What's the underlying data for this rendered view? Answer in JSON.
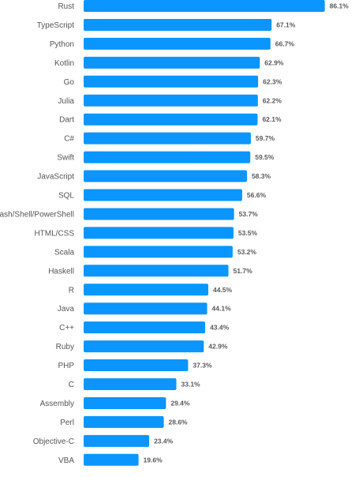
{
  "chart_data": {
    "type": "bar",
    "orientation": "horizontal",
    "unit": "%",
    "bar_color": "#0a95ff",
    "categories": [
      "Rust",
      "TypeScript",
      "Python",
      "Kotlin",
      "Go",
      "Julia",
      "Dart",
      "C#",
      "Swift",
      "JavaScript",
      "SQL",
      "Bash/Shell/PowerShell",
      "HTML/CSS",
      "Scala",
      "Haskell",
      "R",
      "Java",
      "C++",
      "Ruby",
      "PHP",
      "C",
      "Assembly",
      "Perl",
      "Objective-C",
      "VBA"
    ],
    "values": [
      86.1,
      67.1,
      66.7,
      62.9,
      62.3,
      62.2,
      62.1,
      59.7,
      59.5,
      58.3,
      56.6,
      53.7,
      53.5,
      53.2,
      51.7,
      44.5,
      44.1,
      43.4,
      42.9,
      37.3,
      33.1,
      29.4,
      28.6,
      23.4,
      19.6
    ],
    "value_labels": [
      "86.1%",
      "67.1%",
      "66.7%",
      "62.9%",
      "62.3%",
      "62.2%",
      "62.1%",
      "59.7%",
      "59.5%",
      "58.3%",
      "56.6%",
      "53.7%",
      "53.5%",
      "53.2%",
      "51.7%",
      "44.5%",
      "44.1%",
      "43.4%",
      "42.9%",
      "37.3%",
      "33.1%",
      "29.4%",
      "28.6%",
      "23.4%",
      "19.6%"
    ]
  }
}
